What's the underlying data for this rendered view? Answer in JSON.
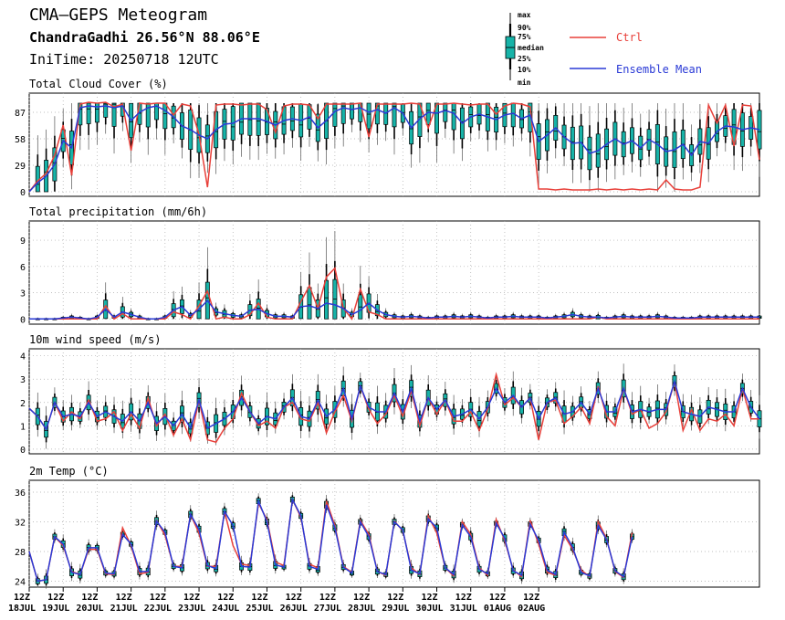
{
  "header": {
    "title": "CMA—GEPS Meteogram",
    "location": "ChandraGadhi 26.56°N 88.06°E",
    "init_time": "IniTime: 20250718 12UTC"
  },
  "legend": {
    "box_labels": [
      "max",
      "90%",
      "75%",
      "median",
      "25%",
      "10%",
      "min"
    ],
    "ctrl_label": "Ctrl",
    "mean_label": "Ensemble Mean",
    "ctrl_color": "#e8403a",
    "mean_color": "#2a3ad6",
    "box_color": "#17b3a8"
  },
  "chart_data": {
    "type": "meteogram",
    "x_step_hours": 6,
    "x_tick_labels": [
      [
        "12Z",
        "18JUL"
      ],
      [
        "12Z",
        "19JUL"
      ],
      [
        "12Z",
        "20JUL"
      ],
      [
        "12Z",
        "21JUL"
      ],
      [
        "12Z",
        "22JUL"
      ],
      [
        "12Z",
        "23JUL"
      ],
      [
        "12Z",
        "24JUL"
      ],
      [
        "12Z",
        "25JUL"
      ],
      [
        "12Z",
        "26JUL"
      ],
      [
        "12Z",
        "27JUL"
      ],
      [
        "12Z",
        "28JUL"
      ],
      [
        "12Z",
        "29JUL"
      ],
      [
        "12Z",
        "30JUL"
      ],
      [
        "12Z",
        "31JUL"
      ],
      [
        "12Z",
        "01AUG"
      ],
      [
        "12Z",
        "02AUG"
      ]
    ],
    "panels": [
      {
        "title": "Total Cloud Cover (%)",
        "yticks": [
          0,
          29,
          58,
          87
        ],
        "ylim": [
          -5,
          108
        ],
        "ctrl": [
          0,
          12,
          20,
          40,
          73,
          18,
          96,
          98,
          97,
          98,
          93,
          96,
          45,
          97,
          96,
          97,
          97,
          84,
          96,
          94,
          63,
          5,
          95,
          96,
          96,
          95,
          96,
          96,
          90,
          65,
          94,
          96,
          96,
          95,
          80,
          96,
          96,
          96,
          96,
          97,
          60,
          96,
          96,
          96,
          96,
          97,
          96,
          70,
          96,
          96,
          97,
          96,
          95,
          96,
          96,
          85,
          94,
          97,
          96,
          93,
          3,
          3,
          2,
          3,
          2,
          2,
          2,
          3,
          2,
          3,
          2,
          3,
          2,
          3,
          2,
          13,
          3,
          2,
          2,
          5,
          95,
          75,
          95,
          50,
          95,
          94,
          35
        ],
        "mean": [
          0,
          10,
          17,
          30,
          56,
          48,
          92,
          94,
          93,
          94,
          92,
          94,
          78,
          87,
          92,
          94,
          89,
          82,
          72,
          68,
          62,
          58,
          68,
          74,
          75,
          80,
          80,
          80,
          77,
          73,
          78,
          80,
          78,
          82,
          70,
          78,
          88,
          92,
          90,
          92,
          87,
          90,
          86,
          92,
          86,
          70,
          80,
          87,
          86,
          89,
          86,
          75,
          82,
          85,
          82,
          79,
          84,
          86,
          80,
          84,
          55,
          62,
          70,
          60,
          53,
          54,
          42,
          45,
          52,
          58,
          52,
          56,
          48,
          57,
          52,
          44,
          46,
          52,
          40,
          55,
          53,
          66,
          72,
          71,
          68,
          70,
          68
        ]
      },
      {
        "title": "Total precipitation (mm/6h)",
        "yticks": [
          0,
          3,
          6,
          9
        ],
        "ylim": [
          -0.6,
          11.2
        ],
        "ctrl": [
          0,
          0,
          0,
          0,
          0,
          0,
          0,
          0,
          0,
          1.5,
          0,
          0.6,
          0,
          0,
          0,
          0,
          0,
          0.8,
          0.5,
          0,
          1.5,
          3.2,
          0,
          0.2,
          0,
          0,
          0.5,
          1.8,
          0.2,
          0,
          0,
          0,
          2,
          3.8,
          1.2,
          4.8,
          5.8,
          1.2,
          0,
          3.4,
          0.8,
          0.5,
          0,
          0,
          0,
          0,
          0,
          0,
          0,
          0,
          0,
          0,
          0,
          0,
          0,
          0,
          0,
          0,
          0,
          0,
          0,
          0,
          0,
          0,
          0,
          0,
          0,
          0.2,
          0,
          0,
          0,
          0,
          0,
          0,
          0,
          0,
          0,
          0,
          0,
          0,
          0,
          0,
          0,
          0,
          0,
          0,
          0
        ],
        "mean": [
          0,
          0,
          0,
          0,
          0.1,
          0.2,
          0.1,
          0,
          0.2,
          1.1,
          0.2,
          0.8,
          0.5,
          0.2,
          0,
          0,
          0.2,
          1.0,
          1.4,
          0.4,
          1.1,
          2.1,
          0.8,
          0.6,
          0.4,
          0.3,
          1.0,
          1.1,
          0.6,
          0.3,
          0.3,
          0.2,
          1.4,
          1.5,
          1.2,
          1.8,
          1.6,
          1.2,
          0.5,
          1.0,
          1.8,
          1.0,
          0.5,
          0.3,
          0.2,
          0.3,
          0.2,
          0.1,
          0.2,
          0.2,
          0.3,
          0.2,
          0.3,
          0.2,
          0.1,
          0.2,
          0.2,
          0.3,
          0.2,
          0.2,
          0.2,
          0.1,
          0.2,
          0.3,
          0.5,
          0.3,
          0.2,
          0.2,
          0.1,
          0.2,
          0.3,
          0.2,
          0.2,
          0.2,
          0.3,
          0.2,
          0.1,
          0.1,
          0.1,
          0.2,
          0.2,
          0.2,
          0.2,
          0.2,
          0.2,
          0.2,
          0.2
        ]
      },
      {
        "title": "10m wind speed (m/s)",
        "yticks": [
          0,
          1,
          2,
          3,
          4
        ],
        "ylim": [
          -0.2,
          4.3
        ],
        "ctrl": [
          1.75,
          1.4,
          0.85,
          2.0,
          1.2,
          1.6,
          1.3,
          2.1,
          1.2,
          1.3,
          1.6,
          0.8,
          1.5,
          0.9,
          2.2,
          1.0,
          1.5,
          0.6,
          1.3,
          0.4,
          2.1,
          0.4,
          0.3,
          0.9,
          1.3,
          2.4,
          1.6,
          1.0,
          1.2,
          0.9,
          1.8,
          2.0,
          1.3,
          1.2,
          2.0,
          0.7,
          1.6,
          2.3,
          1.2,
          2.7,
          1.7,
          1.1,
          1.5,
          2.3,
          1.4,
          2.5,
          1.0,
          2.2,
          1.5,
          2.1,
          1.2,
          1.2,
          1.6,
          0.8,
          1.7,
          3.2,
          1.9,
          2.2,
          1.8,
          2.2,
          0.4,
          2.0,
          2.1,
          1.1,
          1.4,
          1.8,
          1.1,
          2.7,
          1.4,
          1.0,
          2.6,
          1.5,
          1.7,
          0.9,
          1.1,
          1.6,
          2.9,
          0.8,
          1.7,
          0.8,
          1.3,
          1.2,
          1.5,
          1.0,
          2.6,
          1.3,
          1.3
        ],
        "mean": [
          1.75,
          1.4,
          0.85,
          2.0,
          1.4,
          1.5,
          1.4,
          2.0,
          1.4,
          1.6,
          1.4,
          1.2,
          1.6,
          1.2,
          2.0,
          1.1,
          1.4,
          1.0,
          1.5,
          0.9,
          2.1,
          0.9,
          1.1,
          1.3,
          1.6,
          2.2,
          1.6,
          1.1,
          1.4,
          1.3,
          1.8,
          2.2,
          1.4,
          1.3,
          2.1,
          1.4,
          1.7,
          2.6,
          1.3,
          2.7,
          1.8,
          1.6,
          1.6,
          2.4,
          1.6,
          2.6,
          1.2,
          2.2,
          1.7,
          2.1,
          1.4,
          1.5,
          1.7,
          1.3,
          1.8,
          2.6,
          2.0,
          2.3,
          1.8,
          2.2,
          1.3,
          2.0,
          2.2,
          1.5,
          1.6,
          2.0,
          1.5,
          2.6,
          1.6,
          1.6,
          2.6,
          1.6,
          1.7,
          1.6,
          1.7,
          1.7,
          2.9,
          1.6,
          1.5,
          1.4,
          1.8,
          1.7,
          1.6,
          1.6,
          2.6,
          1.8,
          1.3
        ]
      },
      {
        "title": "2m Temp (°C)",
        "yticks": [
          24,
          28,
          32,
          36
        ],
        "ylim": [
          23.2,
          37.6
        ],
        "ctrl": [
          28.0,
          24.0,
          24.2,
          30.0,
          28.8,
          25.3,
          24.9,
          28.3,
          28.3,
          25.0,
          24.9,
          31.2,
          28.8,
          25.0,
          25.2,
          32.2,
          30.2,
          26.0,
          26.0,
          33.0,
          30.5,
          26.0,
          26.0,
          33.4,
          28.8,
          26.3,
          26.1,
          34.5,
          32.3,
          26.6,
          26.1,
          35.0,
          32.6,
          26.3,
          25.8,
          34.8,
          31.5,
          26.0,
          25.2,
          32.2,
          30.3,
          25.3,
          24.8,
          32.1,
          30.8,
          25.8,
          24.9,
          32.8,
          30.5,
          25.8,
          24.7,
          32.0,
          30.3,
          25.8,
          24.8,
          32.3,
          29.5,
          25.5,
          24.6,
          32.2,
          29.0,
          25.2,
          24.8,
          30.2,
          28.3,
          25.5,
          24.6,
          32.0,
          29.7,
          25.3,
          24.5,
          30.5
        ],
        "mean": [
          28.0,
          24.0,
          24.2,
          30.0,
          29.0,
          25.2,
          24.9,
          28.5,
          28.5,
          25.1,
          25.0,
          30.3,
          29.0,
          25.3,
          25.3,
          32.1,
          30.6,
          26.0,
          25.8,
          33.0,
          31.0,
          26.1,
          25.7,
          33.4,
          31.5,
          26.0,
          25.9,
          34.8,
          32.0,
          26.2,
          25.9,
          35.0,
          32.8,
          26.0,
          25.6,
          34.3,
          31.2,
          25.9,
          25.1,
          32.0,
          30.0,
          25.3,
          24.9,
          32.0,
          30.9,
          25.5,
          25.0,
          32.4,
          31.2,
          25.8,
          24.9,
          31.6,
          30.0,
          25.6,
          25.0,
          31.8,
          29.8,
          25.4,
          24.8,
          31.7,
          29.5,
          25.5,
          24.9,
          30.6,
          28.6,
          25.2,
          24.7,
          31.5,
          29.6,
          25.4,
          24.6,
          30.0
        ]
      }
    ]
  }
}
